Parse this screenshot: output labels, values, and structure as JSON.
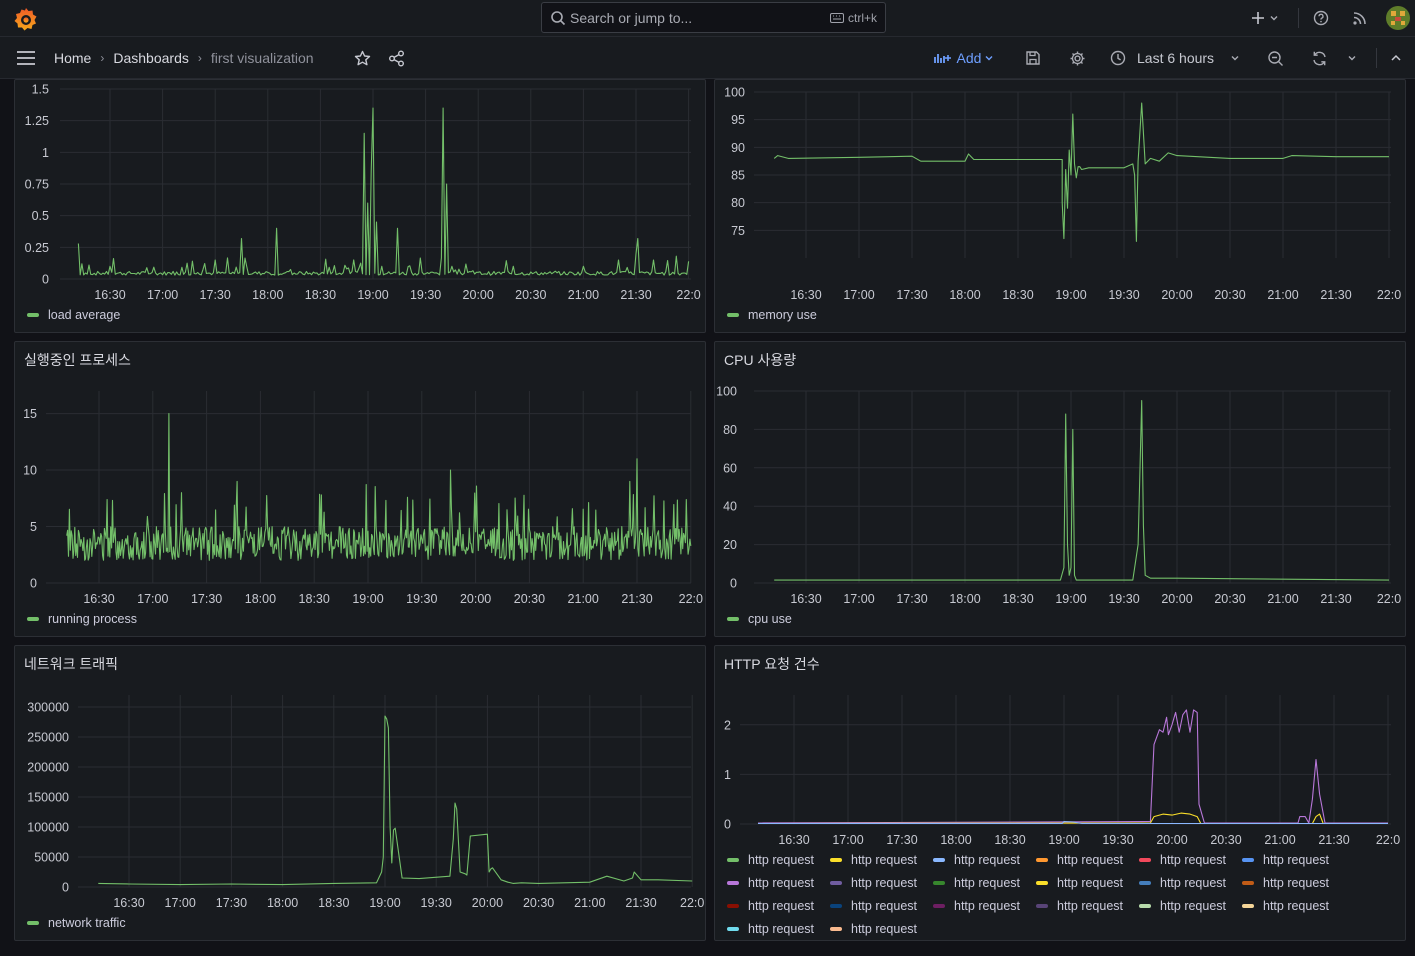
{
  "topbar": {
    "search_placeholder": "Search or jump to...",
    "shortcut": "ctrl+k"
  },
  "navbar": {
    "breadcrumbs": [
      "Home",
      "Dashboards",
      "first visualization"
    ],
    "add_label": "Add",
    "time_range": "Last 6 hours"
  },
  "colors": {
    "series_green": "#73bf69",
    "background": "#111217",
    "panel": "#181b1f"
  },
  "panels": {
    "load": {
      "title": "",
      "legend": "load average"
    },
    "memory": {
      "title": "",
      "legend": "memory use"
    },
    "proc": {
      "title": "실행중인 프로세스",
      "legend": "running process"
    },
    "cpu": {
      "title": "CPU 사용량",
      "legend": "cpu use"
    },
    "net": {
      "title": "네트워크 트래픽",
      "legend": "network traffic"
    },
    "http": {
      "title": "HTTP 요청 건수",
      "legend": [
        {
          "label": "http request",
          "color": "#73bf69"
        },
        {
          "label": "http request",
          "color": "#fade2a"
        },
        {
          "label": "http request",
          "color": "#8ab8ff"
        },
        {
          "label": "http request",
          "color": "#ff9830"
        },
        {
          "label": "http request",
          "color": "#f2495c"
        },
        {
          "label": "http request",
          "color": "#5794f2"
        },
        {
          "label": "http request",
          "color": "#b877d9"
        },
        {
          "label": "http request",
          "color": "#705da0"
        },
        {
          "label": "http request",
          "color": "#37872d"
        },
        {
          "label": "http request",
          "color": "#fade2a"
        },
        {
          "label": "http request",
          "color": "#447ebc"
        },
        {
          "label": "http request",
          "color": "#c15c17"
        },
        {
          "label": "http request",
          "color": "#890f02"
        },
        {
          "label": "http request",
          "color": "#0a437c"
        },
        {
          "label": "http request",
          "color": "#6d1f62"
        },
        {
          "label": "http request",
          "color": "#584477"
        },
        {
          "label": "http request",
          "color": "#b7dbab"
        },
        {
          "label": "http request",
          "color": "#f4d598"
        },
        {
          "label": "http request",
          "color": "#70dbed"
        },
        {
          "label": "http request",
          "color": "#f9ba8f"
        }
      ]
    }
  },
  "chart_data": [
    {
      "id": "load",
      "type": "line",
      "title": "",
      "x_ticks": [
        "16:30",
        "17:00",
        "17:30",
        "18:00",
        "18:30",
        "19:00",
        "19:30",
        "20:00",
        "20:30",
        "21:00",
        "21:30",
        "22:0"
      ],
      "y_ticks": [
        "0",
        "0.25",
        "0.5",
        "0.75",
        "1",
        "1.25",
        "1.5"
      ],
      "ylim": [
        0,
        1.5
      ],
      "series": [
        {
          "name": "load average",
          "color": "#73bf69",
          "baseline": 0.03,
          "x": [
            "16:12",
            "16:14",
            "16:30",
            "17:30",
            "17:45",
            "18:05",
            "18:45",
            "18:55",
            "18:57",
            "18:59",
            "19:00",
            "19:02",
            "19:05",
            "19:14",
            "19:40",
            "19:42",
            "19:45",
            "20:20",
            "21:00",
            "21:20",
            "21:30",
            "21:31",
            "21:40",
            "21:53",
            "22:00"
          ],
          "y": [
            0.28,
            0.12,
            0.1,
            0.15,
            0.32,
            0.4,
            0.08,
            1.15,
            0.6,
            0.85,
            1.35,
            0.45,
            0.1,
            0.4,
            1.35,
            0.75,
            0.1,
            0.1,
            0.1,
            0.15,
            0.2,
            0.32,
            0.15,
            0.18,
            0.14
          ]
        }
      ]
    },
    {
      "id": "memory",
      "type": "line",
      "title": "",
      "x_ticks": [
        "16:30",
        "17:00",
        "17:30",
        "18:00",
        "18:30",
        "19:00",
        "19:30",
        "20:00",
        "20:30",
        "21:00",
        "21:30",
        "22:0"
      ],
      "y_ticks": [
        "75",
        "80",
        "85",
        "90",
        "95",
        "100"
      ],
      "ylim": [
        70,
        100
      ],
      "series": [
        {
          "name": "memory use",
          "color": "#73bf69",
          "x": [
            "16:12",
            "16:14",
            "16:20",
            "17:00",
            "17:30",
            "17:35",
            "18:00",
            "18:02",
            "18:05",
            "18:55",
            "18:55",
            "18:56",
            "18:57",
            "18:58",
            "18:59",
            "19:00",
            "19:01",
            "19:02",
            "19:03",
            "19:04",
            "19:05",
            "19:06",
            "19:10",
            "19:30",
            "19:35",
            "19:36",
            "19:37",
            "19:38",
            "19:40",
            "19:42",
            "19:45",
            "19:50",
            "19:55",
            "20:00",
            "20:30",
            "21:00",
            "21:05",
            "21:30",
            "22:00"
          ],
          "y": [
            88,
            88.5,
            88,
            88.2,
            88.4,
            87.5,
            87.5,
            88.8,
            87.8,
            87.8,
            80,
            73.5,
            86,
            79,
            89.5,
            85,
            96,
            87,
            84.5,
            86.5,
            86.5,
            86,
            86.3,
            86.3,
            87,
            85,
            73,
            87.5,
            98,
            87,
            88,
            87.5,
            89,
            88.5,
            88,
            88,
            88.5,
            88.3,
            88.3
          ]
        }
      ]
    },
    {
      "id": "proc",
      "type": "line",
      "title": "실행중인 프로세스",
      "x_ticks": [
        "16:30",
        "17:00",
        "17:30",
        "18:00",
        "18:30",
        "19:00",
        "19:30",
        "20:00",
        "20:30",
        "21:00",
        "21:30",
        "22:0"
      ],
      "y_ticks": [
        "0",
        "5",
        "10",
        "15"
      ],
      "ylim": [
        0,
        17
      ],
      "series": [
        {
          "name": "running process",
          "color": "#73bf69",
          "range": [
            2,
            5
          ],
          "x": [
            "17:09",
            "17:47",
            "19:46",
            "21:30"
          ],
          "y": [
            15,
            9,
            10,
            11
          ]
        }
      ]
    },
    {
      "id": "cpu",
      "type": "line",
      "title": "CPU 사용량",
      "x_ticks": [
        "16:30",
        "17:00",
        "17:30",
        "18:00",
        "18:30",
        "19:00",
        "19:30",
        "20:00",
        "20:30",
        "21:00",
        "21:30",
        "22:0"
      ],
      "y_ticks": [
        "0",
        "20",
        "40",
        "60",
        "80",
        "100"
      ],
      "ylim": [
        0,
        100
      ],
      "series": [
        {
          "name": "cpu use",
          "color": "#73bf69",
          "x": [
            "16:12",
            "18:54",
            "18:56",
            "18:57",
            "18:58",
            "18:59",
            "19:00",
            "19:01",
            "19:02",
            "19:03",
            "19:35",
            "19:38",
            "19:40",
            "19:41",
            "19:42",
            "19:45",
            "20:00",
            "22:00"
          ],
          "y": [
            1.5,
            1.5,
            8,
            88,
            20,
            4,
            8,
            80,
            4,
            1.5,
            1.5,
            20,
            95,
            30,
            4,
            2.5,
            2.5,
            1.5
          ]
        }
      ]
    },
    {
      "id": "net",
      "type": "line",
      "title": "네트워크 트래픽",
      "x_ticks": [
        "16:30",
        "17:00",
        "17:30",
        "18:00",
        "18:30",
        "19:00",
        "19:30",
        "20:00",
        "20:30",
        "21:00",
        "21:30",
        "22:0"
      ],
      "y_ticks": [
        "0",
        "50000",
        "100000",
        "150000",
        "200000",
        "250000",
        "300000"
      ],
      "ylim": [
        0,
        320000
      ],
      "series": [
        {
          "name": "network traffic",
          "color": "#73bf69",
          "x": [
            "16:12",
            "16:30",
            "17:00",
            "17:30",
            "18:00",
            "18:30",
            "18:55",
            "18:58",
            "18:59",
            "19:00",
            "19:01",
            "19:02",
            "19:03",
            "19:04",
            "19:05",
            "19:06",
            "19:10",
            "19:20",
            "19:38",
            "19:40",
            "19:41",
            "19:42",
            "19:44",
            "19:47",
            "19:48",
            "19:50",
            "20:00",
            "20:01",
            "20:02",
            "20:03",
            "20:04",
            "20:08",
            "20:12",
            "20:15",
            "20:20",
            "20:30",
            "21:00",
            "21:10",
            "21:20",
            "21:25",
            "21:26",
            "21:30",
            "21:40",
            "22:00"
          ],
          "y": [
            6000,
            5000,
            4000,
            5000,
            4000,
            6000,
            7000,
            25000,
            50000,
            285000,
            280000,
            265000,
            100000,
            40000,
            95000,
            98000,
            15000,
            14000,
            18000,
            80000,
            140000,
            130000,
            25000,
            22000,
            20000,
            85000,
            88000,
            25000,
            30000,
            32000,
            28000,
            12000,
            8000,
            6000,
            7000,
            6000,
            8000,
            18000,
            10000,
            15000,
            25000,
            12000,
            12000,
            10000
          ]
        }
      ]
    },
    {
      "id": "http",
      "type": "line",
      "title": "HTTP 요청 건수",
      "x_ticks": [
        "16:30",
        "17:00",
        "17:30",
        "18:00",
        "18:30",
        "19:00",
        "19:30",
        "20:00",
        "20:30",
        "21:00",
        "21:30",
        "22:0"
      ],
      "y_ticks": [
        "0",
        "1",
        "2"
      ],
      "ylim": [
        0,
        2.6
      ],
      "series": [
        {
          "name": "http request",
          "color": "#b877d9",
          "x": [
            "16:10",
            "19:48",
            "19:50",
            "19:53",
            "19:55",
            "19:57",
            "19:58",
            "20:00",
            "20:02",
            "20:04",
            "20:06",
            "20:08",
            "20:10",
            "20:12",
            "20:14",
            "20:15",
            "20:18",
            "21:10",
            "21:11",
            "21:14",
            "21:16",
            "21:18",
            "21:20",
            "21:22",
            "21:25",
            "22:00"
          ],
          "y": [
            0.02,
            0.05,
            1.6,
            1.9,
            1.85,
            2.15,
            1.8,
            2.0,
            2.25,
            1.85,
            2.2,
            2.3,
            1.85,
            2.3,
            2.25,
            0.4,
            0.02,
            0.02,
            0.15,
            0.15,
            0.02,
            0.5,
            1.3,
            0.6,
            0.02,
            0.02
          ]
        },
        {
          "name": "http request",
          "color": "#fade2a",
          "x": [
            "16:10",
            "19:48",
            "19:50",
            "19:55",
            "20:00",
            "20:05",
            "20:10",
            "20:14",
            "20:16",
            "21:18",
            "21:20",
            "21:22",
            "21:24",
            "22:00"
          ],
          "y": [
            0.01,
            0.02,
            0.15,
            0.2,
            0.18,
            0.22,
            0.2,
            0.15,
            0.01,
            0.01,
            0.15,
            0.2,
            0.01,
            0.01
          ]
        },
        {
          "name": "http request",
          "color": "#8ab8ff",
          "x": [
            "16:10",
            "18:59",
            "19:00",
            "19:05",
            "19:10",
            "22:00"
          ],
          "y": [
            0.01,
            0.01,
            0.05,
            0.04,
            0.01,
            0.01
          ]
        }
      ]
    }
  ]
}
